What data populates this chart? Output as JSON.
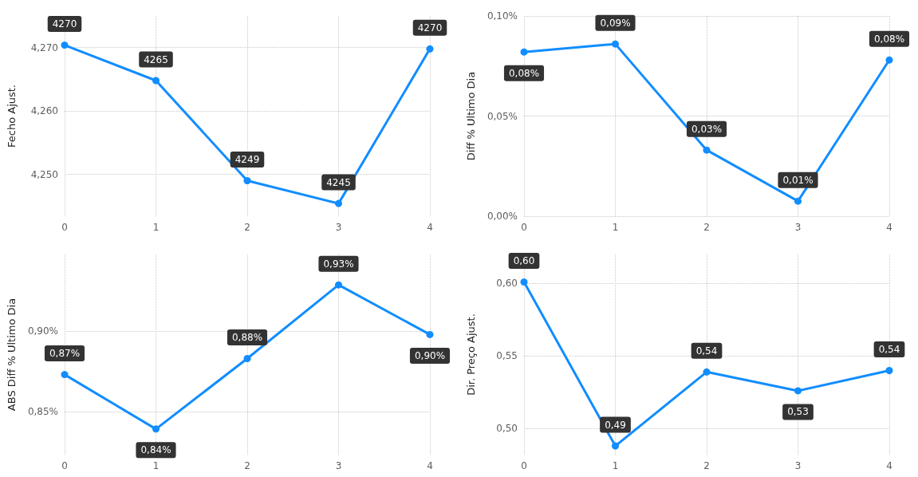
{
  "chart_data": [
    {
      "type": "line",
      "ylabel": "Fecho Ajust.",
      "categories": [
        "0",
        "1",
        "2",
        "3",
        "4"
      ],
      "values": [
        4270.4,
        4264.8,
        4249,
        4245.4,
        4269.8
      ],
      "value_labels": [
        "4270",
        "4265",
        "4249",
        "4245",
        "4270"
      ],
      "color": "#118dff",
      "ylim": [
        4243.4,
        4275
      ],
      "yticks": [
        {
          "value": 4250,
          "label": "4,250"
        },
        {
          "value": 4260,
          "label": "4,260"
        },
        {
          "value": 4270,
          "label": "4,270"
        }
      ],
      "grid": true,
      "marker": "circle",
      "line_style": "solid"
    },
    {
      "type": "line",
      "ylabel": "Diff % Ultimo Dia",
      "categories": [
        "0",
        "1",
        "2",
        "3",
        "4"
      ],
      "values": [
        0.082,
        0.086,
        0.033,
        0.0075,
        0.078
      ],
      "value_labels": [
        "0,08%",
        "0,09%",
        "0,03%",
        "0,01%",
        "0,08%"
      ],
      "color": "#118dff",
      "ylim": [
        0,
        0.1
      ],
      "yticks": [
        {
          "value": 0,
          "label": "0,00%"
        },
        {
          "value": 0.05,
          "label": "0,05%"
        },
        {
          "value": 0.1,
          "label": "0,10%"
        }
      ],
      "grid": true,
      "marker": "circle",
      "line_style": "solid"
    },
    {
      "type": "line",
      "ylabel": "ABS Diff % Ultimo Dia",
      "categories": [
        "0",
        "1",
        "2",
        "3",
        "4"
      ],
      "values": [
        0.873,
        0.839,
        0.883,
        0.929,
        0.898
      ],
      "value_labels": [
        "0,87%",
        "0,84%",
        "0,88%",
        "0,93%",
        "0,90%"
      ],
      "color": "#118dff",
      "ylim": [
        0.823,
        0.948
      ],
      "yticks": [
        {
          "value": 0.85,
          "label": "0,85%"
        },
        {
          "value": 0.9,
          "label": "0,90%"
        }
      ],
      "grid": true,
      "marker": "circle",
      "line_style": "solid"
    },
    {
      "type": "line",
      "ylabel": "Dir. Preço Ajust.",
      "categories": [
        "0",
        "1",
        "2",
        "3",
        "4"
      ],
      "values": [
        0.601,
        0.488,
        0.539,
        0.526,
        0.54
      ],
      "value_labels": [
        "0,60",
        "0,49",
        "0,54",
        "0,53",
        "0,54"
      ],
      "color": "#118dff",
      "ylim": [
        0.482,
        0.62
      ],
      "yticks": [
        {
          "value": 0.5,
          "label": "0,50"
        },
        {
          "value": 0.55,
          "label": "0,55"
        },
        {
          "value": 0.6,
          "label": "0,60"
        }
      ],
      "grid": true,
      "marker": "circle",
      "line_style": "solid"
    }
  ]
}
